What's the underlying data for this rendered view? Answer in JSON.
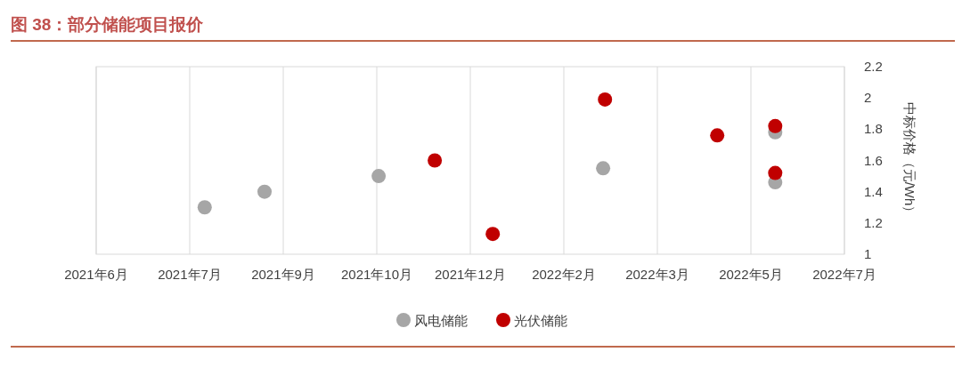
{
  "chart_data": {
    "type": "scatter",
    "title": "图 38：部分储能项目报价",
    "ylabel": "中标价格（元/Wh）",
    "xlim": [
      "2021-06-01",
      "2022-07-06"
    ],
    "xticks": [
      {
        "value": "2021-06-01",
        "label": "2021年6月"
      },
      {
        "value": "2021-07-21",
        "label": "2021年7月"
      },
      {
        "value": "2021-09-09",
        "label": "2021年9月"
      },
      {
        "value": "2021-10-29",
        "label": "2021年10月"
      },
      {
        "value": "2021-12-18",
        "label": "2021年12月"
      },
      {
        "value": "2022-02-06",
        "label": "2022年2月"
      },
      {
        "value": "2022-03-28",
        "label": "2022年3月"
      },
      {
        "value": "2022-05-17",
        "label": "2022年5月"
      },
      {
        "value": "2022-07-06",
        "label": "2022年7月"
      }
    ],
    "ylim": [
      1,
      2.2
    ],
    "yticks": [
      1,
      1.2,
      1.4,
      1.6,
      1.8,
      2,
      2.2
    ],
    "grid": "x",
    "legend": "bottom",
    "marker": "circle",
    "series": [
      {
        "name": "风电储能",
        "color": "#a6a6a6",
        "x": [
          "2021-07-29",
          "2021-08-30",
          "2021-10-30",
          "2022-02-27",
          "2022-05-30",
          "2022-05-30"
        ],
        "values": [
          1.3,
          1.4,
          1.5,
          1.55,
          1.78,
          1.46
        ]
      },
      {
        "name": "光伏储能",
        "color": "#c00000",
        "x": [
          "2021-11-29",
          "2021-12-30",
          "2022-02-28",
          "2022-04-29",
          "2022-05-30",
          "2022-05-30"
        ],
        "values": [
          1.6,
          1.13,
          1.99,
          1.76,
          1.82,
          1.52
        ]
      }
    ]
  }
}
